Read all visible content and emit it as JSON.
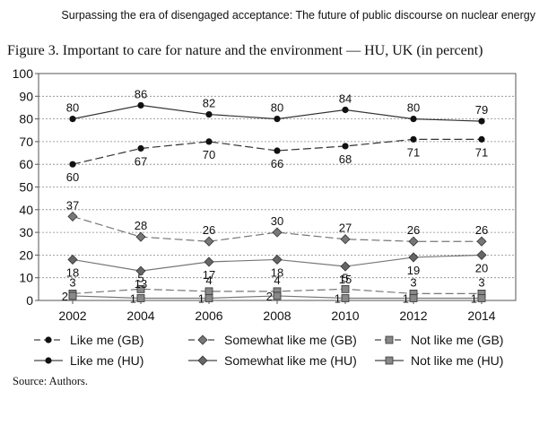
{
  "page": {
    "running_head": "Surpassing the era of disengaged acceptance: The future of public discourse on nuclear energy",
    "figure_title": "Figure 3. Important to care for nature and the environment — HU, UK (in percent)",
    "source": "Source: Authors."
  },
  "chart_data": {
    "type": "line",
    "title": "Figure 3. Important to care for nature and the environment — HU, UK (in percent)",
    "x": [
      2002,
      2004,
      2006,
      2008,
      2010,
      2012,
      2014
    ],
    "ylim": [
      0,
      100
    ],
    "yticks": [
      0,
      10,
      20,
      30,
      40,
      50,
      60,
      70,
      80,
      90,
      100
    ],
    "grid": "horizontal dashed",
    "legend_position": "bottom",
    "series": [
      {
        "name": "Like me (GB)",
        "values": [
          60,
          67,
          70,
          66,
          68,
          71,
          71
        ],
        "line": "dashed",
        "marker": "circle",
        "color": "#222222",
        "labels": [
          "60",
          "67",
          "70",
          "66",
          "68",
          "71",
          "71"
        ],
        "label_side": [
          "below",
          "below",
          "below",
          "below",
          "below",
          "below",
          "below"
        ]
      },
      {
        "name": "Somewhat like me (GB)",
        "values": [
          37,
          28,
          26,
          30,
          27,
          26,
          26
        ],
        "line": "dashed",
        "marker": "diamond",
        "color": "#777777",
        "labels": [
          "37",
          "28",
          "26",
          "30",
          "27",
          "26",
          "26"
        ],
        "label_side": [
          "above",
          "above",
          "above",
          "above",
          "above",
          "above",
          "above"
        ]
      },
      {
        "name": "Not like me (GB)",
        "values": [
          3,
          5,
          4,
          4,
          5,
          3,
          3
        ],
        "line": "dashed",
        "marker": "square",
        "color": "#888888",
        "labels": [
          "3",
          "5",
          "4",
          "4",
          "5",
          "3",
          "3"
        ],
        "label_side": [
          "above",
          "above",
          "above",
          "above",
          "above",
          "above",
          "above"
        ]
      },
      {
        "name": "Like me (HU)",
        "values": [
          80,
          86,
          82,
          80,
          84,
          80,
          79
        ],
        "line": "solid",
        "marker": "circle",
        "color": "#222222",
        "labels": [
          "80",
          "86",
          "82",
          "80",
          "84",
          "80",
          "79"
        ],
        "label_side": [
          "above",
          "above",
          "above",
          "above",
          "above",
          "above",
          "above"
        ]
      },
      {
        "name": "Somewhat like me (HU)",
        "values": [
          18,
          13,
          17,
          18,
          15,
          19,
          20
        ],
        "line": "solid",
        "marker": "diamond",
        "color": "#666666",
        "labels": [
          "18",
          "13",
          "17",
          "18",
          "15",
          "19",
          "20"
        ],
        "label_side": [
          "below",
          "below",
          "below",
          "below",
          "below",
          "below",
          "below"
        ]
      },
      {
        "name": "Not like me (HU)",
        "values": [
          2,
          1,
          1,
          2,
          1,
          1,
          1
        ],
        "line": "solid",
        "marker": "square",
        "color": "#888888",
        "labels": [
          "2",
          "1",
          "1",
          "2",
          "1",
          "1",
          "1"
        ],
        "label_side": [
          "left",
          "left",
          "left",
          "left",
          "left",
          "left",
          "left"
        ]
      }
    ]
  }
}
